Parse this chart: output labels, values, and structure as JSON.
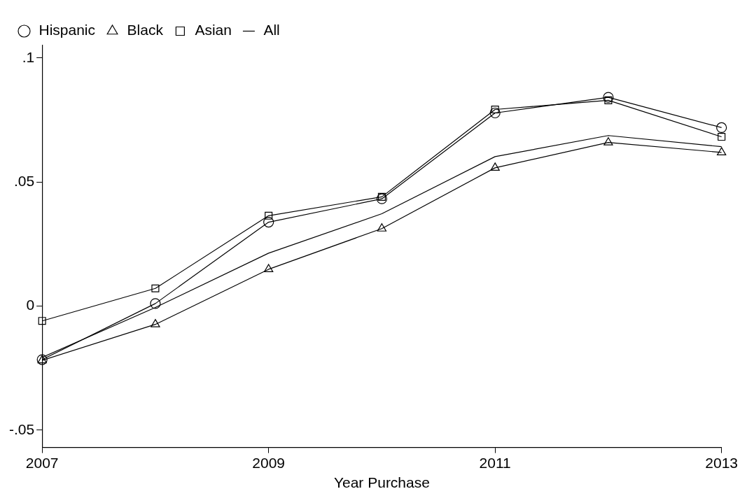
{
  "chart_data": {
    "type": "line",
    "xlabel": "Year Purchase",
    "x": [
      2007,
      2008,
      2009,
      2010,
      2011,
      2012,
      2013
    ],
    "xlim": [
      2007,
      2013
    ],
    "xticks": [
      2007,
      2009,
      2011,
      2013
    ],
    "ylim": [
      -0.057,
      0.105
    ],
    "yticks": [
      {
        "value": -0.05,
        "label": "-.05"
      },
      {
        "value": 0,
        "label": "0"
      },
      {
        "value": 0.05,
        "label": ".05"
      },
      {
        "value": 0.1,
        "label": ".1"
      }
    ],
    "grid": false,
    "legend": "top",
    "line_style": "solid",
    "series": [
      {
        "name": "Hispanic",
        "color": "#000000",
        "marker": "circle",
        "values": [
          -0.0216,
          0.001,
          0.0338,
          0.0432,
          0.0778,
          0.0841,
          0.0719
        ]
      },
      {
        "name": "Black",
        "color": "#000000",
        "marker": "triangle",
        "values": [
          -0.0219,
          -0.0074,
          0.0148,
          0.0312,
          0.0557,
          0.0659,
          0.0619
        ]
      },
      {
        "name": "Asian",
        "color": "#000000",
        "marker": "square",
        "values": [
          -0.006,
          0.0071,
          0.0364,
          0.044,
          0.0792,
          0.0829,
          0.0682
        ]
      },
      {
        "name": "All",
        "color": "#000000",
        "marker": "none",
        "values": [
          -0.0207,
          -0.0006,
          0.0213,
          0.0372,
          0.0602,
          0.0687,
          0.0642
        ]
      }
    ]
  }
}
